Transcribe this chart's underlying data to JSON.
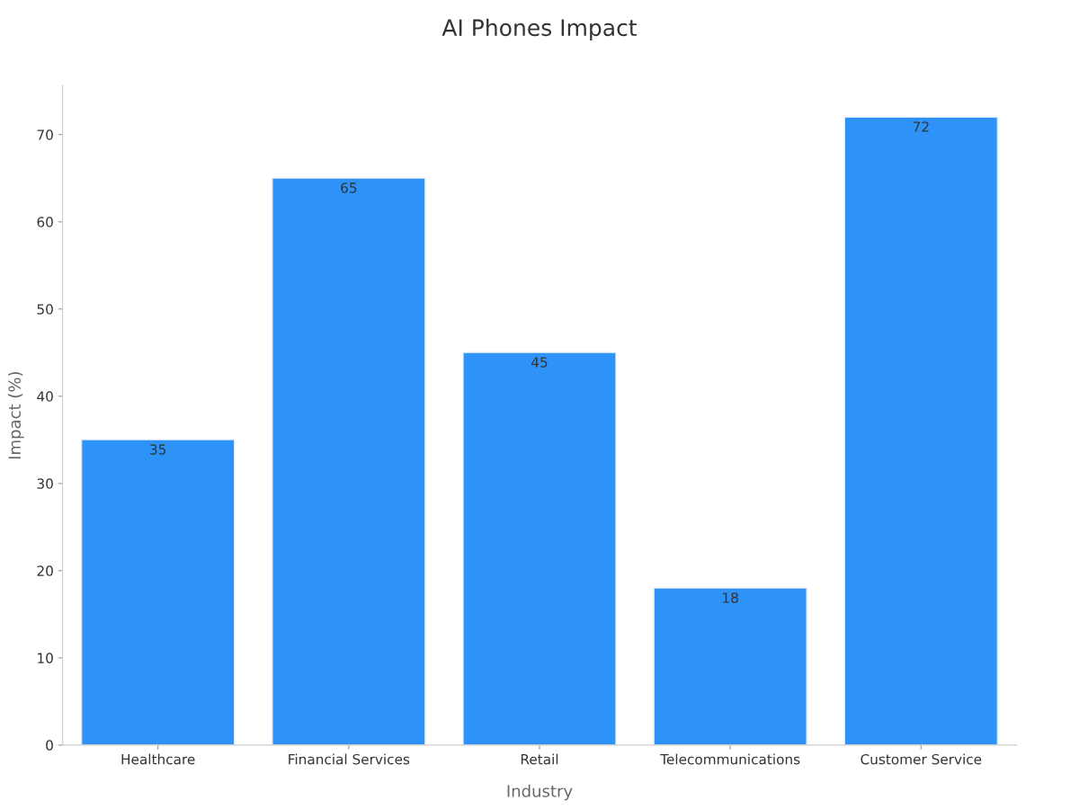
{
  "chart_data": {
    "type": "bar",
    "title": "AI Phones Impact",
    "xlabel": "Industry",
    "ylabel": "Impact (%)",
    "categories": [
      "Healthcare",
      "Financial Services",
      "Retail",
      "Telecommunications",
      "Customer Service"
    ],
    "values": [
      35,
      65,
      45,
      18,
      72
    ],
    "color": "#2e93f8",
    "ylim": [
      0,
      75.6
    ],
    "yticks": [
      0,
      10,
      20,
      30,
      40,
      50,
      60,
      70
    ],
    "grid": false,
    "data_labels": true
  }
}
